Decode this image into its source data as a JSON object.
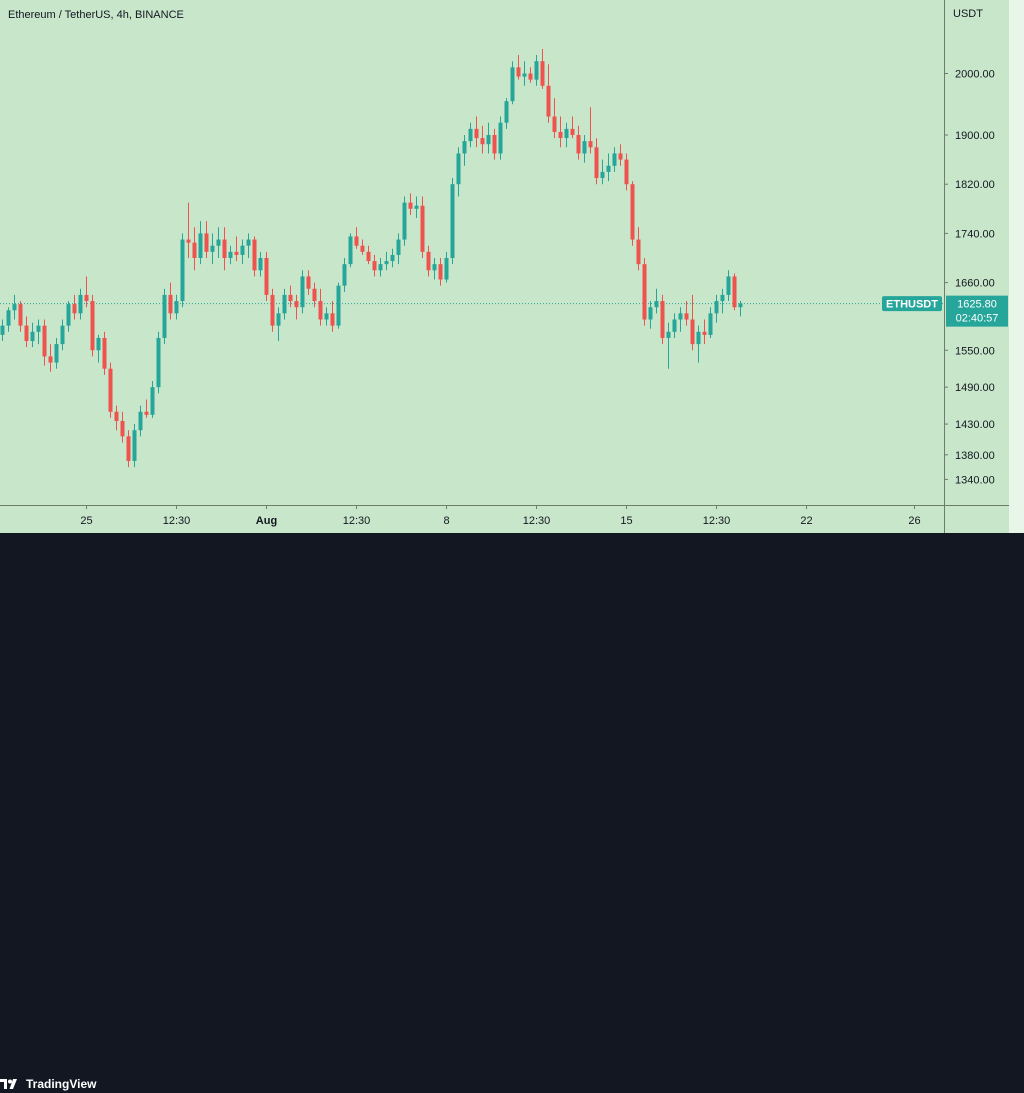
{
  "header": {
    "symbol_title": "Ethereum / TetherUS, 4h, BINANCE"
  },
  "price_axis": {
    "currency": "USDT"
  },
  "current_price": {
    "symbol": "ETHUSDT",
    "price": "1625.80",
    "countdown": "02:40:57",
    "value": 1625.8
  },
  "colors": {
    "background": "#c8e6c9",
    "up": "#26a69a",
    "down": "#ef5350",
    "label_bg": "#26a69a"
  },
  "footer": {
    "brand": "TradingView",
    "logo_icon": "tradingview-logo-icon"
  },
  "chart_data": {
    "type": "candlestick",
    "timeframe": "4h",
    "ylim": [
      1300,
      2100
    ],
    "y_ticks": [
      {
        "value": 2000,
        "label": "2000.00"
      },
      {
        "value": 1900,
        "label": "1900.00"
      },
      {
        "value": 1820,
        "label": "1820.00"
      },
      {
        "value": 1740,
        "label": "1740.00"
      },
      {
        "value": 1660,
        "label": "1660.00"
      },
      {
        "value": 1550,
        "label": "1550.00"
      },
      {
        "value": 1490,
        "label": "1490.00"
      },
      {
        "value": 1430,
        "label": "1430.00"
      },
      {
        "value": 1380,
        "label": "1380.00"
      },
      {
        "value": 1340,
        "label": "1340.00"
      }
    ],
    "x_ticks": [
      {
        "label": "25",
        "candle": 14,
        "bold": false
      },
      {
        "label": "12:30",
        "candle": 29,
        "bold": false
      },
      {
        "label": "Aug",
        "candle": 44,
        "bold": true
      },
      {
        "label": "12:30",
        "candle": 59,
        "bold": false
      },
      {
        "label": "8",
        "candle": 74,
        "bold": false
      },
      {
        "label": "12:30",
        "candle": 89,
        "bold": false
      },
      {
        "label": "15",
        "candle": 104,
        "bold": false
      },
      {
        "label": "12:30",
        "candle": 119,
        "bold": false
      },
      {
        "label": "22",
        "candle": 134,
        "bold": false
      },
      {
        "label": "26",
        "candle": 152,
        "bold": false
      }
    ],
    "candles": [
      [
        1575,
        1600,
        1565,
        1590
      ],
      [
        1590,
        1620,
        1580,
        1615
      ],
      [
        1615,
        1640,
        1600,
        1625
      ],
      [
        1625,
        1630,
        1580,
        1590
      ],
      [
        1590,
        1605,
        1555,
        1565
      ],
      [
        1565,
        1595,
        1555,
        1580
      ],
      [
        1580,
        1600,
        1560,
        1590
      ],
      [
        1590,
        1600,
        1525,
        1540
      ],
      [
        1540,
        1560,
        1515,
        1530
      ],
      [
        1530,
        1570,
        1520,
        1560
      ],
      [
        1560,
        1600,
        1550,
        1590
      ],
      [
        1590,
        1630,
        1580,
        1625
      ],
      [
        1625,
        1640,
        1600,
        1610
      ],
      [
        1610,
        1650,
        1600,
        1640
      ],
      [
        1640,
        1670,
        1620,
        1630
      ],
      [
        1630,
        1640,
        1540,
        1550
      ],
      [
        1550,
        1575,
        1530,
        1570
      ],
      [
        1570,
        1580,
        1510,
        1520
      ],
      [
        1520,
        1530,
        1440,
        1450
      ],
      [
        1450,
        1460,
        1420,
        1435
      ],
      [
        1435,
        1450,
        1400,
        1410
      ],
      [
        1410,
        1420,
        1360,
        1370
      ],
      [
        1370,
        1430,
        1360,
        1420
      ],
      [
        1420,
        1460,
        1410,
        1450
      ],
      [
        1450,
        1470,
        1440,
        1445
      ],
      [
        1445,
        1500,
        1440,
        1490
      ],
      [
        1490,
        1580,
        1480,
        1570
      ],
      [
        1570,
        1650,
        1560,
        1640
      ],
      [
        1640,
        1660,
        1600,
        1610
      ],
      [
        1610,
        1640,
        1600,
        1630
      ],
      [
        1630,
        1740,
        1620,
        1730
      ],
      [
        1730,
        1790,
        1700,
        1725
      ],
      [
        1725,
        1750,
        1680,
        1700
      ],
      [
        1700,
        1760,
        1690,
        1740
      ],
      [
        1740,
        1760,
        1700,
        1710
      ],
      [
        1710,
        1740,
        1690,
        1720
      ],
      [
        1720,
        1750,
        1700,
        1730
      ],
      [
        1730,
        1750,
        1680,
        1700
      ],
      [
        1700,
        1720,
        1690,
        1710
      ],
      [
        1710,
        1735,
        1695,
        1705
      ],
      [
        1705,
        1730,
        1690,
        1720
      ],
      [
        1720,
        1740,
        1700,
        1730
      ],
      [
        1730,
        1735,
        1670,
        1680
      ],
      [
        1680,
        1710,
        1670,
        1700
      ],
      [
        1700,
        1710,
        1630,
        1640
      ],
      [
        1640,
        1650,
        1580,
        1590
      ],
      [
        1590,
        1620,
        1565,
        1610
      ],
      [
        1610,
        1650,
        1600,
        1640
      ],
      [
        1640,
        1655,
        1620,
        1630
      ],
      [
        1630,
        1640,
        1600,
        1620
      ],
      [
        1620,
        1680,
        1610,
        1670
      ],
      [
        1670,
        1680,
        1640,
        1650
      ],
      [
        1650,
        1660,
        1620,
        1630
      ],
      [
        1630,
        1650,
        1590,
        1600
      ],
      [
        1600,
        1620,
        1590,
        1610
      ],
      [
        1610,
        1630,
        1580,
        1590
      ],
      [
        1590,
        1660,
        1585,
        1655
      ],
      [
        1655,
        1700,
        1645,
        1690
      ],
      [
        1690,
        1740,
        1685,
        1735
      ],
      [
        1735,
        1750,
        1715,
        1720
      ],
      [
        1720,
        1730,
        1705,
        1710
      ],
      [
        1710,
        1720,
        1690,
        1695
      ],
      [
        1695,
        1705,
        1670,
        1680
      ],
      [
        1680,
        1700,
        1670,
        1690
      ],
      [
        1690,
        1710,
        1680,
        1695
      ],
      [
        1695,
        1715,
        1685,
        1705
      ],
      [
        1705,
        1740,
        1690,
        1730
      ],
      [
        1730,
        1800,
        1720,
        1790
      ],
      [
        1790,
        1805,
        1770,
        1780
      ],
      [
        1780,
        1800,
        1765,
        1785
      ],
      [
        1785,
        1800,
        1700,
        1710
      ],
      [
        1710,
        1720,
        1670,
        1680
      ],
      [
        1680,
        1700,
        1665,
        1690
      ],
      [
        1690,
        1700,
        1655,
        1665
      ],
      [
        1665,
        1710,
        1660,
        1700
      ],
      [
        1700,
        1830,
        1690,
        1820
      ],
      [
        1820,
        1880,
        1800,
        1870
      ],
      [
        1870,
        1900,
        1850,
        1890
      ],
      [
        1890,
        1920,
        1880,
        1910
      ],
      [
        1910,
        1930,
        1880,
        1895
      ],
      [
        1895,
        1915,
        1870,
        1885
      ],
      [
        1885,
        1920,
        1870,
        1900
      ],
      [
        1900,
        1910,
        1860,
        1870
      ],
      [
        1870,
        1930,
        1860,
        1920
      ],
      [
        1920,
        1960,
        1910,
        1955
      ],
      [
        1955,
        2020,
        1950,
        2010
      ],
      [
        2010,
        2030,
        1990,
        1995
      ],
      [
        1995,
        2020,
        1980,
        2000
      ],
      [
        2000,
        2010,
        1985,
        1990
      ],
      [
        1990,
        2030,
        1980,
        2020
      ],
      [
        2020,
        2040,
        1975,
        1980
      ],
      [
        1980,
        2015,
        1920,
        1930
      ],
      [
        1930,
        1960,
        1895,
        1905
      ],
      [
        1905,
        1930,
        1880,
        1895
      ],
      [
        1895,
        1920,
        1880,
        1910
      ],
      [
        1910,
        1930,
        1895,
        1900
      ],
      [
        1900,
        1915,
        1860,
        1870
      ],
      [
        1870,
        1900,
        1855,
        1890
      ],
      [
        1890,
        1945,
        1870,
        1880
      ],
      [
        1880,
        1895,
        1820,
        1830
      ],
      [
        1830,
        1860,
        1820,
        1840
      ],
      [
        1840,
        1870,
        1825,
        1850
      ],
      [
        1850,
        1880,
        1840,
        1870
      ],
      [
        1870,
        1885,
        1850,
        1860
      ],
      [
        1860,
        1870,
        1810,
        1820
      ],
      [
        1820,
        1825,
        1720,
        1730
      ],
      [
        1730,
        1750,
        1680,
        1690
      ],
      [
        1690,
        1700,
        1590,
        1600
      ],
      [
        1600,
        1630,
        1585,
        1620
      ],
      [
        1620,
        1650,
        1610,
        1630
      ],
      [
        1630,
        1640,
        1560,
        1570
      ],
      [
        1570,
        1595,
        1520,
        1580
      ],
      [
        1580,
        1610,
        1570,
        1600
      ],
      [
        1600,
        1620,
        1580,
        1610
      ],
      [
        1610,
        1630,
        1590,
        1600
      ],
      [
        1600,
        1640,
        1550,
        1560
      ],
      [
        1560,
        1590,
        1530,
        1580
      ],
      [
        1580,
        1600,
        1560,
        1575
      ],
      [
        1575,
        1620,
        1570,
        1610
      ],
      [
        1610,
        1640,
        1595,
        1630
      ],
      [
        1630,
        1650,
        1610,
        1640
      ],
      [
        1640,
        1680,
        1630,
        1670
      ],
      [
        1670,
        1675,
        1615,
        1620
      ],
      [
        1620,
        1630,
        1605,
        1626
      ]
    ]
  }
}
